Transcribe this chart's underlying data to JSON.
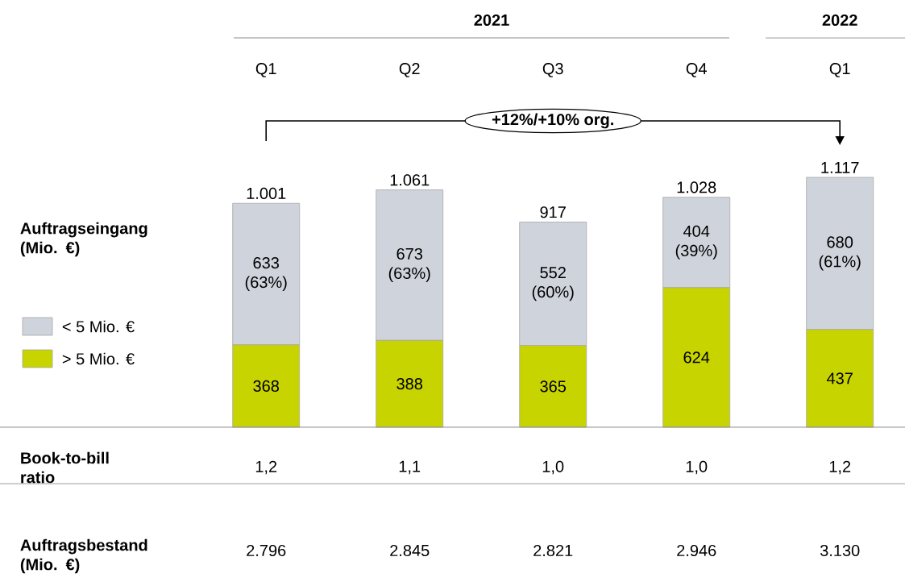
{
  "chart_data": {
    "type": "bar",
    "stacked": true,
    "ylabel": "Auftragseingang (Mio. €)",
    "categories": [
      "Q1",
      "Q2",
      "Q3",
      "Q4",
      "Q1"
    ],
    "series": [
      {
        "name": "> 5 Mio. €",
        "color": "#c8d400",
        "values": [
          368,
          388,
          365,
          624,
          437
        ],
        "value_labels": [
          "368",
          "388",
          "365",
          "624",
          "437"
        ]
      },
      {
        "name": "< 5 Mio. €",
        "color": "#cfd4dc",
        "values": [
          633,
          673,
          552,
          404,
          680
        ],
        "value_labels": [
          "633 (63%)",
          "673 (63%)",
          "552 (60%)",
          "404 (39%)",
          "680 (61%)"
        ]
      }
    ],
    "totals": [
      "1.001",
      "1.061",
      "917",
      "1.028",
      "1.117"
    ],
    "legend": "left",
    "annotations": [
      "2021",
      "2022",
      "+12%/+10% org.",
      "Book-to-bill ratio",
      "1,2",
      "1,1",
      "1,0",
      "1,0",
      "1,2",
      "Auftragsbestand (Mio. €)",
      "2.796",
      "2.845",
      "2.821",
      "2.946",
      "3.130"
    ]
  }
}
